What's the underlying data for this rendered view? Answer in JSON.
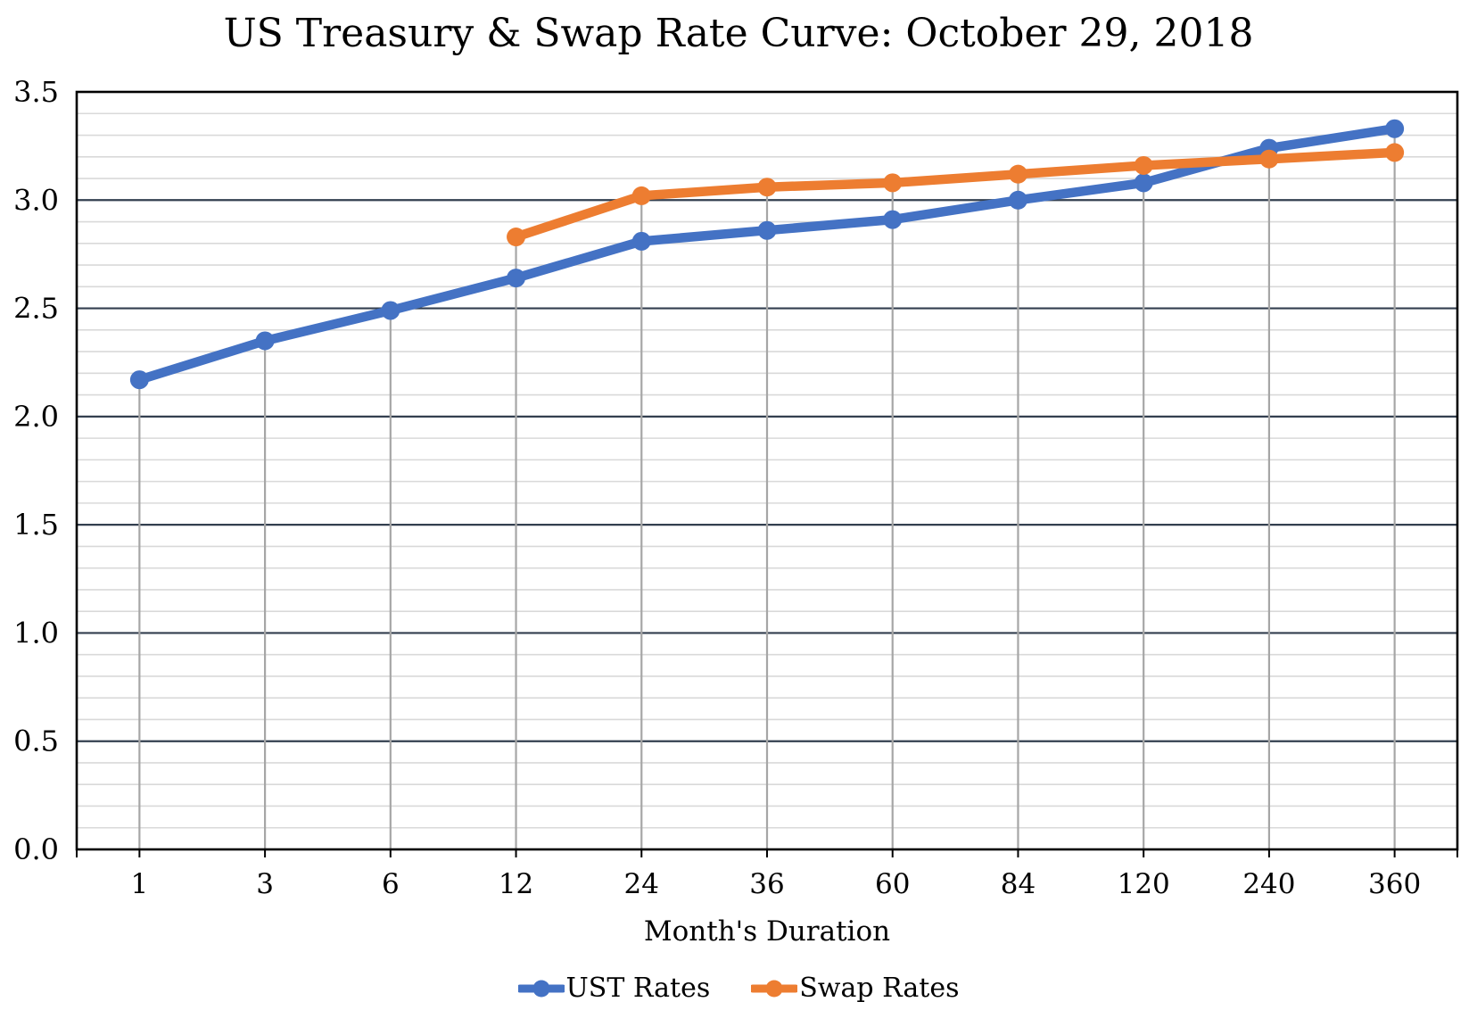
{
  "title": "US Treasury & Swap Rate Curve: October 29, 2018",
  "chart_data": {
    "type": "line",
    "categories": [
      "1",
      "3",
      "6",
      "12",
      "24",
      "36",
      "60",
      "84",
      "120",
      "240",
      "360"
    ],
    "series": [
      {
        "name": "UST Rates",
        "color": "#4472C4",
        "values": [
          2.17,
          2.35,
          2.49,
          2.64,
          2.81,
          2.86,
          2.91,
          3.0,
          3.08,
          3.24,
          3.33
        ]
      },
      {
        "name": "Swap Rates",
        "color": "#ED7D31",
        "values": [
          null,
          null,
          null,
          2.83,
          3.02,
          3.06,
          3.08,
          3.12,
          3.16,
          3.19,
          3.22
        ]
      }
    ],
    "title": "US Treasury & Swap Rate Curve: October 29, 2018",
    "xlabel": "Month's Duration",
    "ylabel": "",
    "ylim": [
      0,
      3.5
    ],
    "y_major_step": 0.5,
    "y_minor_step": 0.1,
    "y_tick_labels": [
      "0.0",
      "0.5",
      "1.0",
      "1.5",
      "2.0",
      "2.5",
      "3.0",
      "3.5"
    ],
    "grid": true,
    "has_drop_lines": true,
    "legend_position": "bottom",
    "colors": {
      "minor_gridline": "#D9D9D9",
      "major_gridline": "#333F4F",
      "drop_line": "#A6A6A6",
      "axis_border": "#000000",
      "background": "#FFFFFF"
    }
  }
}
